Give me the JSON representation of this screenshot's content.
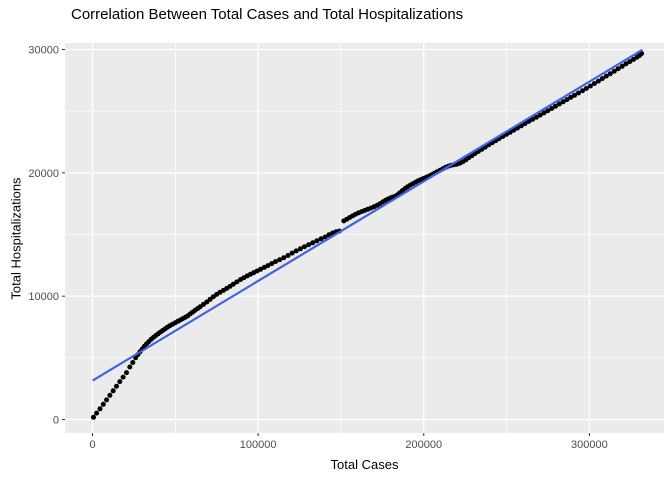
{
  "chart_data": {
    "type": "scatter",
    "title": "Correlation Between Total Cases and Total Hospitalizations",
    "xlabel": "Total Cases",
    "ylabel": "Total Hospitalizations",
    "legend": "none",
    "grid": "on",
    "xlim": [
      -16600,
      345100
    ],
    "ylim": [
      -1140,
      30530
    ],
    "x_axis": {
      "major_ticks": [
        0,
        100000,
        200000,
        300000
      ],
      "major_labels": [
        "0",
        "100000",
        "200000",
        "300000"
      ],
      "minor_ticks": [
        50000,
        150000,
        250000
      ]
    },
    "y_axis": {
      "major_ticks": [
        0,
        10000,
        20000,
        30000
      ],
      "major_labels": [
        "0",
        "10000",
        "20000",
        "30000"
      ],
      "minor_ticks": [
        5000,
        15000,
        25000
      ]
    },
    "colors": {
      "panel_bg": "#EBEBEB",
      "grid_major": "#FFFFFF",
      "grid_minor": "#FFFFFF",
      "point": "#000000",
      "regression": "#3D64E1",
      "tick_label": "#4D4D4D",
      "tick_mark": "#333333",
      "title": "#000000"
    },
    "regression_line": {
      "model": "linear",
      "x": [
        600,
        331500
      ],
      "y": [
        3200,
        29940
      ]
    },
    "points": [
      [
        600,
        180
      ],
      [
        2500,
        520
      ],
      [
        4500,
        870
      ],
      [
        6500,
        1230
      ],
      [
        8500,
        1590
      ],
      [
        10500,
        1960
      ],
      [
        12500,
        2330
      ],
      [
        14500,
        2700
      ],
      [
        16500,
        3070
      ],
      [
        18500,
        3440
      ],
      [
        20500,
        3800
      ],
      [
        22500,
        4260
      ],
      [
        24300,
        4620
      ],
      [
        26000,
        5000
      ],
      [
        27400,
        5260
      ],
      [
        28700,
        5500
      ],
      [
        30000,
        5720
      ],
      [
        31300,
        5930
      ],
      [
        32600,
        6130
      ],
      [
        34000,
        6320
      ],
      [
        35400,
        6500
      ],
      [
        36800,
        6660
      ],
      [
        38200,
        6810
      ],
      [
        39600,
        6950
      ],
      [
        41000,
        7090
      ],
      [
        42400,
        7220
      ],
      [
        43800,
        7350
      ],
      [
        45200,
        7480
      ],
      [
        46600,
        7600
      ],
      [
        48300,
        7730
      ],
      [
        50000,
        7850
      ],
      [
        51500,
        7960
      ],
      [
        53000,
        8070
      ],
      [
        54500,
        8180
      ],
      [
        56000,
        8290
      ],
      [
        57500,
        8400
      ],
      [
        59000,
        8560
      ],
      [
        60500,
        8710
      ],
      [
        62000,
        8860
      ],
      [
        63500,
        9000
      ],
      [
        65000,
        9150
      ],
      [
        67000,
        9330
      ],
      [
        69000,
        9530
      ],
      [
        71000,
        9750
      ],
      [
        73000,
        9960
      ],
      [
        75000,
        10140
      ],
      [
        77000,
        10310
      ],
      [
        79000,
        10470
      ],
      [
        81000,
        10630
      ],
      [
        83000,
        10790
      ],
      [
        85000,
        10970
      ],
      [
        87200,
        11160
      ],
      [
        89400,
        11350
      ],
      [
        91400,
        11500
      ],
      [
        93400,
        11640
      ],
      [
        95400,
        11780
      ],
      [
        97400,
        11910
      ],
      [
        99400,
        12040
      ],
      [
        101500,
        12180
      ],
      [
        103700,
        12330
      ],
      [
        105900,
        12480
      ],
      [
        108200,
        12640
      ],
      [
        110500,
        12800
      ],
      [
        113000,
        12960
      ],
      [
        115500,
        13120
      ],
      [
        118000,
        13300
      ],
      [
        120500,
        13490
      ],
      [
        123000,
        13670
      ],
      [
        125500,
        13840
      ],
      [
        128000,
        14010
      ],
      [
        130500,
        14170
      ],
      [
        133000,
        14330
      ],
      [
        135500,
        14490
      ],
      [
        138000,
        14650
      ],
      [
        140500,
        14800
      ],
      [
        142800,
        14980
      ],
      [
        145000,
        15120
      ],
      [
        147000,
        15220
      ],
      [
        149000,
        15280
      ],
      [
        151700,
        16100
      ],
      [
        153500,
        16240
      ],
      [
        155300,
        16380
      ],
      [
        157100,
        16520
      ],
      [
        158900,
        16650
      ],
      [
        160700,
        16760
      ],
      [
        162500,
        16860
      ],
      [
        164300,
        16950
      ],
      [
        166100,
        17040
      ],
      [
        168000,
        17140
      ],
      [
        169900,
        17250
      ],
      [
        171800,
        17370
      ],
      [
        173600,
        17500
      ],
      [
        175300,
        17640
      ],
      [
        176900,
        17770
      ],
      [
        178400,
        17880
      ],
      [
        179800,
        17960
      ],
      [
        181200,
        18030
      ],
      [
        182600,
        18090
      ],
      [
        184100,
        18210
      ],
      [
        185600,
        18380
      ],
      [
        187100,
        18560
      ],
      [
        188700,
        18730
      ],
      [
        190300,
        18880
      ],
      [
        191900,
        19010
      ],
      [
        193500,
        19130
      ],
      [
        195100,
        19250
      ],
      [
        196700,
        19360
      ],
      [
        198300,
        19460
      ],
      [
        199900,
        19550
      ],
      [
        201500,
        19640
      ],
      [
        203100,
        19740
      ],
      [
        204700,
        19850
      ],
      [
        206400,
        19970
      ],
      [
        208100,
        20090
      ],
      [
        209800,
        20210
      ],
      [
        211500,
        20330
      ],
      [
        213200,
        20450
      ],
      [
        214900,
        20550
      ],
      [
        216600,
        20620
      ],
      [
        218300,
        20660
      ],
      [
        220000,
        20700
      ],
      [
        221800,
        20780
      ],
      [
        223600,
        20900
      ],
      [
        225400,
        21060
      ],
      [
        227200,
        21230
      ],
      [
        229100,
        21400
      ],
      [
        231000,
        21570
      ],
      [
        233000,
        21740
      ],
      [
        235000,
        21910
      ],
      [
        237100,
        22090
      ],
      [
        239200,
        22270
      ],
      [
        241300,
        22440
      ],
      [
        243400,
        22610
      ],
      [
        245500,
        22780
      ],
      [
        247700,
        22950
      ],
      [
        249900,
        23120
      ],
      [
        252100,
        23290
      ],
      [
        254300,
        23460
      ],
      [
        256500,
        23630
      ],
      [
        258800,
        23810
      ],
      [
        261100,
        23990
      ],
      [
        263400,
        24170
      ],
      [
        265700,
        24340
      ],
      [
        268000,
        24510
      ],
      [
        270300,
        24680
      ],
      [
        272600,
        24860
      ],
      [
        274900,
        25040
      ],
      [
        277200,
        25220
      ],
      [
        279500,
        25400
      ],
      [
        281800,
        25580
      ],
      [
        284100,
        25760
      ],
      [
        286400,
        25940
      ],
      [
        288700,
        26120
      ],
      [
        291000,
        26290
      ],
      [
        293400,
        26470
      ],
      [
        295800,
        26660
      ],
      [
        298200,
        26850
      ],
      [
        300600,
        27040
      ],
      [
        303000,
        27240
      ],
      [
        305400,
        27440
      ],
      [
        307800,
        27640
      ],
      [
        310200,
        27840
      ],
      [
        312600,
        28040
      ],
      [
        315000,
        28240
      ],
      [
        317400,
        28440
      ],
      [
        319800,
        28640
      ],
      [
        322100,
        28830
      ],
      [
        324400,
        29020
      ],
      [
        326600,
        29200
      ],
      [
        328700,
        29380
      ],
      [
        330300,
        29520
      ],
      [
        331500,
        29680
      ]
    ]
  }
}
